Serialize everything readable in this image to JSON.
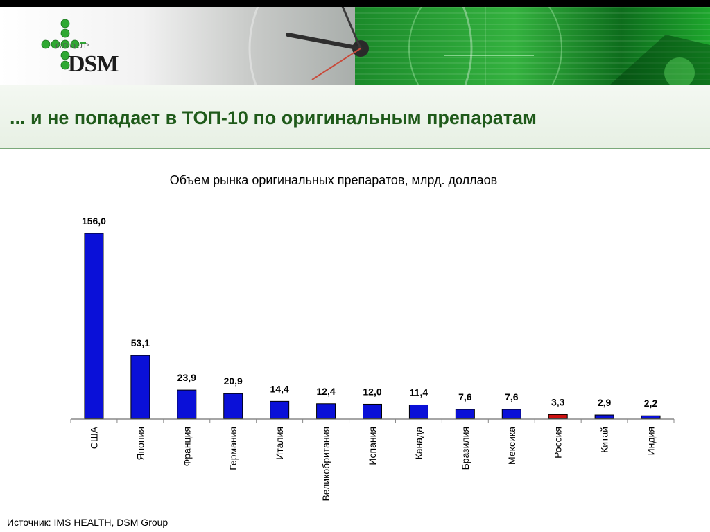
{
  "header": {
    "logo": {
      "group_text": "GROUP",
      "brand_text": "DSM"
    }
  },
  "page_title": "... и не попадает в ТОП-10 по оригинальным препаратам",
  "chart_data": {
    "type": "bar",
    "title": "Объем рынка оригинальных препаратов, млрд. доллаов",
    "xlabel": "",
    "ylabel": "",
    "categories": [
      "США",
      "Япония",
      "Франция",
      "Германия",
      "Италия",
      "Великобритания",
      "Испания",
      "Канада",
      "Бразилия",
      "Мексика",
      "Россия",
      "Китай",
      "Индия"
    ],
    "values": [
      156.0,
      53.1,
      23.9,
      20.9,
      14.4,
      12.4,
      12.0,
      11.4,
      7.6,
      7.6,
      3.3,
      2.9,
      2.2
    ],
    "value_labels": [
      "156,0",
      "53,1",
      "23,9",
      "20,9",
      "14,4",
      "12,4",
      "12,0",
      "11,4",
      "7,6",
      "7,6",
      "3,3",
      "2,9",
      "2,2"
    ],
    "ylim": [
      0,
      156
    ],
    "grid": false,
    "legend": "none",
    "colors": {
      "default": "#0a10d8",
      "highlight": "#cc1010",
      "highlight_category": "Россия"
    }
  },
  "footer": {
    "source": "Источник: IMS HEALTH, DSM Group"
  }
}
